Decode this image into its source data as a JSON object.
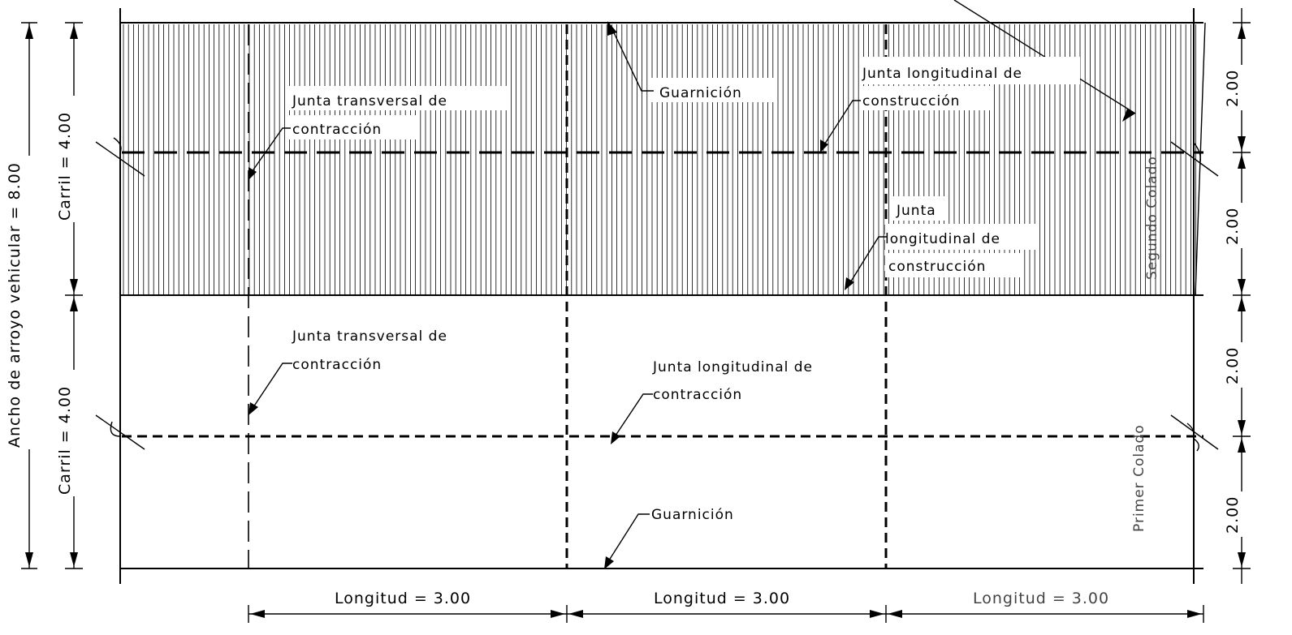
{
  "labels": {
    "arroyo": "Ancho de arroyo vehicular = 8.00",
    "carril_top": "Carril = 4.00",
    "carril_bottom": "Carril = 4.00",
    "dim_200_a": "2.00",
    "dim_200_b": "2.00",
    "dim_200_c": "2.00",
    "dim_200_d": "2.00",
    "longitud_1": "Longitud = 3.00",
    "longitud_2": "Longitud = 3.00",
    "longitud_3": "Longitud = 3.00",
    "segundo_colado": "Segundo Colado",
    "primer_colado": "Primer Colado"
  },
  "annotations": {
    "guarnicion_top": "Guarnición",
    "guarnicion_bottom": "Guarnición",
    "junta_transversal_top_1": "Junta transversal de",
    "junta_transversal_top_2": "contracción",
    "junta_long_const_top_1": "Junta longitudinal de",
    "junta_long_const_top_2": "construcción",
    "junta_long_const_mid_1": "Junta",
    "junta_long_const_mid_2": "longitudinal de",
    "junta_long_const_mid_3": "construcción",
    "junta_transversal_bot_1": "Junta transversal de",
    "junta_transversal_bot_2": "contracción",
    "junta_long_contr_1": "Junta longitudinal de",
    "junta_long_contr_2": "contracción"
  },
  "colors": {
    "ink": "#000000",
    "background": "#ffffff"
  }
}
